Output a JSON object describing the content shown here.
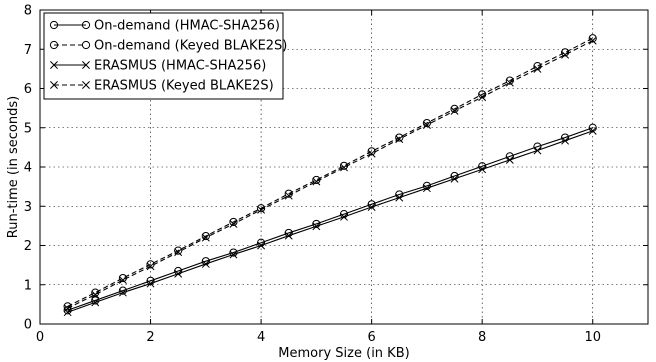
{
  "chart_data": {
    "type": "line",
    "title": "",
    "xlabel": "Memory Size (in KB)",
    "ylabel": "Run-time (in seconds)",
    "xlim": [
      0,
      11
    ],
    "ylim": [
      0,
      8
    ],
    "xticks": [
      "0",
      "2",
      "4",
      "6",
      "8",
      "10"
    ],
    "yticks": [
      "0",
      "1",
      "2",
      "3",
      "4",
      "5",
      "6",
      "7",
      "8"
    ],
    "grid": true,
    "legend_position": "top-left",
    "x": [
      0.5,
      1.0,
      1.5,
      2.0,
      2.5,
      3.0,
      3.5,
      4.0,
      4.5,
      5.0,
      5.5,
      6.0,
      6.5,
      7.0,
      7.5,
      8.0,
      8.5,
      9.0,
      9.5,
      10.0
    ],
    "series": [
      {
        "name": "On-demand (HMAC-SHA256)",
        "line": "solid",
        "marker": "circle",
        "values": [
          0.35,
          0.6,
          0.85,
          1.1,
          1.35,
          1.6,
          1.82,
          2.07,
          2.32,
          2.55,
          2.8,
          3.05,
          3.3,
          3.52,
          3.77,
          4.02,
          4.27,
          4.52,
          4.75,
          5.0
        ]
      },
      {
        "name": "On-demand (Keyed BLAKE2S)",
        "line": "dashed",
        "marker": "circle",
        "values": [
          0.45,
          0.8,
          1.17,
          1.52,
          1.87,
          2.24,
          2.6,
          2.95,
          3.32,
          3.67,
          4.03,
          4.4,
          4.75,
          5.12,
          5.48,
          5.85,
          6.2,
          6.57,
          6.92,
          7.28
        ]
      },
      {
        "name": "ERASMUS (HMAC-SHA256)",
        "line": "solid",
        "marker": "x",
        "values": [
          0.3,
          0.55,
          0.8,
          1.03,
          1.28,
          1.53,
          1.77,
          2.0,
          2.25,
          2.49,
          2.73,
          2.98,
          3.22,
          3.46,
          3.7,
          3.94,
          4.18,
          4.42,
          4.67,
          4.92
        ]
      },
      {
        "name": "ERASMUS (Keyed BLAKE2S)",
        "line": "dashed",
        "marker": "x",
        "values": [
          0.4,
          0.75,
          1.12,
          1.47,
          1.83,
          2.2,
          2.55,
          2.91,
          3.27,
          3.63,
          3.99,
          4.34,
          4.71,
          5.07,
          5.43,
          5.78,
          6.15,
          6.5,
          6.86,
          7.22
        ]
      }
    ]
  }
}
